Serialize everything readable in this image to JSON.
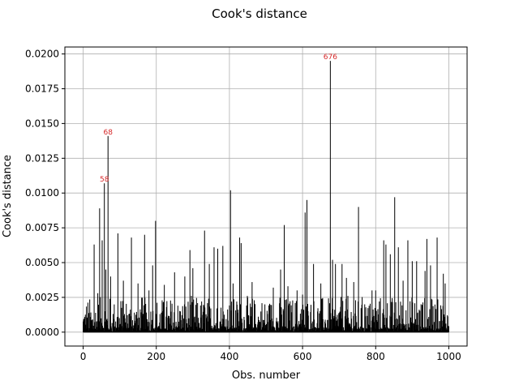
{
  "chart_data": {
    "type": "bar",
    "title": "Cook's distance",
    "xlabel": "Obs. number",
    "ylabel": "Cook's distance",
    "xlim": [
      -50,
      1050
    ],
    "ylim": [
      -0.001,
      0.0205
    ],
    "xticks": [
      0,
      200,
      400,
      600,
      800,
      1000
    ],
    "xtick_labels": [
      "0",
      "200",
      "400",
      "600",
      "800",
      "1000"
    ],
    "yticks": [
      0.0,
      0.0025,
      0.005,
      0.0075,
      0.01,
      0.0125,
      0.015,
      0.0175,
      0.02
    ],
    "ytick_labels": [
      "0.0000",
      "0.0025",
      "0.0050",
      "0.0075",
      "0.0100",
      "0.0125",
      "0.0150",
      "0.0175",
      "0.0200"
    ],
    "grid": true,
    "n_obs": 1000,
    "bar_color": "#000000",
    "annotation_color": "#d62728",
    "peaks": [
      {
        "x": 30,
        "y": 0.0063
      },
      {
        "x": 40,
        "y": 0.0028
      },
      {
        "x": 45,
        "y": 0.0089
      },
      {
        "x": 52,
        "y": 0.0066
      },
      {
        "x": 58,
        "y": 0.0107
      },
      {
        "x": 62,
        "y": 0.0045
      },
      {
        "x": 68,
        "y": 0.0141
      },
      {
        "x": 75,
        "y": 0.004
      },
      {
        "x": 95,
        "y": 0.0071
      },
      {
        "x": 110,
        "y": 0.0037
      },
      {
        "x": 132,
        "y": 0.0068
      },
      {
        "x": 150,
        "y": 0.0035
      },
      {
        "x": 168,
        "y": 0.007
      },
      {
        "x": 180,
        "y": 0.003
      },
      {
        "x": 190,
        "y": 0.0048
      },
      {
        "x": 198,
        "y": 0.008
      },
      {
        "x": 222,
        "y": 0.0034
      },
      {
        "x": 250,
        "y": 0.0043
      },
      {
        "x": 278,
        "y": 0.004
      },
      {
        "x": 292,
        "y": 0.0059
      },
      {
        "x": 300,
        "y": 0.0046
      },
      {
        "x": 332,
        "y": 0.0073
      },
      {
        "x": 345,
        "y": 0.0049
      },
      {
        "x": 358,
        "y": 0.0061
      },
      {
        "x": 368,
        "y": 0.006
      },
      {
        "x": 382,
        "y": 0.0062
      },
      {
        "x": 403,
        "y": 0.0102
      },
      {
        "x": 410,
        "y": 0.0035
      },
      {
        "x": 428,
        "y": 0.0068
      },
      {
        "x": 432,
        "y": 0.0064
      },
      {
        "x": 462,
        "y": 0.0036
      },
      {
        "x": 520,
        "y": 0.0032
      },
      {
        "x": 540,
        "y": 0.0045
      },
      {
        "x": 550,
        "y": 0.0077
      },
      {
        "x": 560,
        "y": 0.0033
      },
      {
        "x": 585,
        "y": 0.003
      },
      {
        "x": 600,
        "y": 0.0027
      },
      {
        "x": 607,
        "y": 0.0086
      },
      {
        "x": 612,
        "y": 0.0095
      },
      {
        "x": 630,
        "y": 0.0049
      },
      {
        "x": 650,
        "y": 0.0035
      },
      {
        "x": 676,
        "y": 0.0195
      },
      {
        "x": 682,
        "y": 0.0052
      },
      {
        "x": 690,
        "y": 0.0049
      },
      {
        "x": 708,
        "y": 0.0049
      },
      {
        "x": 720,
        "y": 0.0039
      },
      {
        "x": 740,
        "y": 0.0036
      },
      {
        "x": 753,
        "y": 0.009
      },
      {
        "x": 770,
        "y": 0.002
      },
      {
        "x": 790,
        "y": 0.003
      },
      {
        "x": 800,
        "y": 0.003
      },
      {
        "x": 822,
        "y": 0.0066
      },
      {
        "x": 828,
        "y": 0.0063
      },
      {
        "x": 840,
        "y": 0.0056
      },
      {
        "x": 852,
        "y": 0.0097
      },
      {
        "x": 862,
        "y": 0.0061
      },
      {
        "x": 875,
        "y": 0.0037
      },
      {
        "x": 888,
        "y": 0.0066
      },
      {
        "x": 900,
        "y": 0.0051
      },
      {
        "x": 912,
        "y": 0.0051
      },
      {
        "x": 935,
        "y": 0.0044
      },
      {
        "x": 940,
        "y": 0.0067
      },
      {
        "x": 950,
        "y": 0.0048
      },
      {
        "x": 968,
        "y": 0.0068
      },
      {
        "x": 985,
        "y": 0.0042
      },
      {
        "x": 990,
        "y": 0.0035
      }
    ],
    "annotations": [
      {
        "label": "58",
        "x": 58,
        "y": 0.0107
      },
      {
        "label": "68",
        "x": 68,
        "y": 0.0141
      },
      {
        "label": "676",
        "x": 676,
        "y": 0.0195
      }
    ]
  }
}
